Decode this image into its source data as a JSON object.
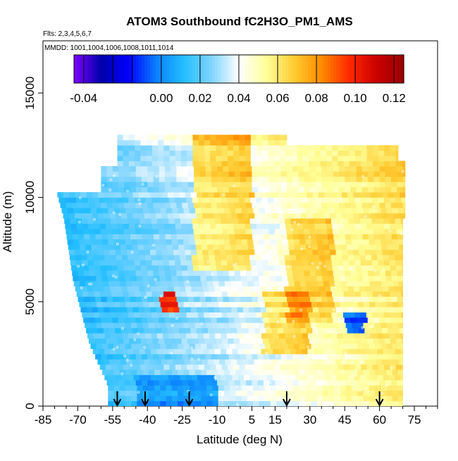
{
  "chart_data": {
    "type": "heatmap",
    "title": "ATOM3 Southbound fC2H3O_PM1_AMS",
    "flights_note": "Flts: 2,3,4,5,6,7",
    "dates_note": "MMDD: 1001,1004,1006,1008,1011,1014",
    "xlabel": "Latitude (deg N)",
    "ylabel": "Altitude (m)",
    "xlim": [
      -85,
      85
    ],
    "ylim": [
      0,
      17500
    ],
    "x_ticks": [
      -85,
      -70,
      -55,
      -40,
      -25,
      -10,
      5,
      15,
      30,
      45,
      60,
      75
    ],
    "x_tick_labels": [
      "-85",
      "-70",
      "-55",
      "-40",
      "-25",
      "-10",
      "5",
      "15",
      "30",
      "45",
      "60",
      "75"
    ],
    "y_ticks": [
      0,
      5000,
      10000,
      15000
    ],
    "y_tick_labels": [
      "0",
      "5000",
      "10000",
      "15000"
    ],
    "colorbar": {
      "range": [
        -0.045,
        0.125
      ],
      "ticks": [
        -0.04,
        0.0,
        0.02,
        0.04,
        0.06,
        0.08,
        0.1,
        0.12
      ],
      "tick_labels": [
        "-0.04",
        "0.00",
        "0.02",
        "0.04",
        "0.06",
        "0.08",
        "0.10",
        "0.12"
      ],
      "boundaries": [
        -0.04,
        -0.025,
        -0.015,
        0.0,
        0.02,
        0.04,
        0.06,
        0.08,
        0.1,
        0.12
      ],
      "colors": [
        "#7f00ff",
        "#0000aa",
        "#0000ff",
        "#0a80ff",
        "#24bfff",
        "#7fd4ff",
        "#ffffff",
        "#ffff99",
        "#ffcc33",
        "#ff8c00",
        "#ff2a00",
        "#cc0000",
        "#990000"
      ]
    },
    "sampling_arrows_lat": [
      -53,
      -41,
      -22,
      20,
      60
    ],
    "grid": false,
    "legend": "colorbar top"
  }
}
